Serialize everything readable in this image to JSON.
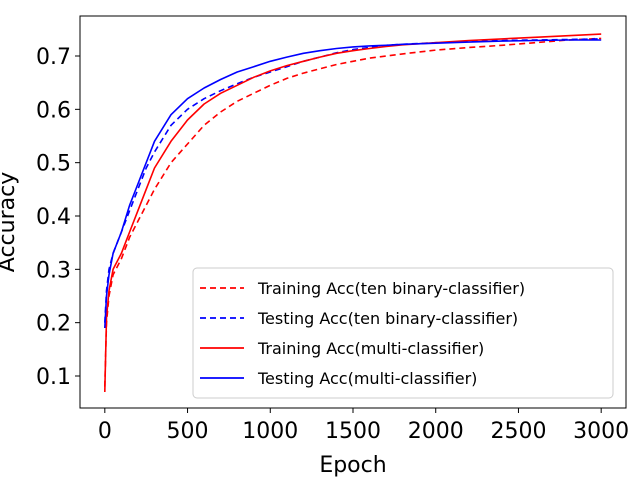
{
  "chart_data": {
    "type": "line",
    "xlabel": "Epoch",
    "ylabel": "Accuracy",
    "xlim": [
      -150,
      3150
    ],
    "ylim": [
      0.04,
      0.775
    ],
    "xticks": [
      0,
      500,
      1000,
      1500,
      2000,
      2500,
      3000
    ],
    "yticks": [
      0.1,
      0.2,
      0.3,
      0.4,
      0.5,
      0.6,
      0.7
    ],
    "xtick_labels": [
      "0",
      "500",
      "1000",
      "1500",
      "2000",
      "2500",
      "3000"
    ],
    "ytick_labels": [
      "0.1",
      "0.2",
      "0.3",
      "0.4",
      "0.5",
      "0.6",
      "0.7"
    ],
    "grid": false,
    "legend_position": "lower-right",
    "series": [
      {
        "name": "Training Acc(ten binary-classifier)",
        "color": "#ff0000",
        "style": "dashed",
        "x": [
          0,
          10,
          25,
          50,
          100,
          150,
          200,
          250,
          300,
          400,
          500,
          600,
          700,
          800,
          900,
          1000,
          1100,
          1200,
          1300,
          1400,
          1500,
          1600,
          1700,
          1800,
          2000,
          2200,
          2400,
          2600,
          2800,
          3000
        ],
        "y": [
          0.08,
          0.2,
          0.25,
          0.29,
          0.32,
          0.36,
          0.39,
          0.42,
          0.45,
          0.5,
          0.535,
          0.57,
          0.595,
          0.615,
          0.63,
          0.645,
          0.658,
          0.668,
          0.676,
          0.684,
          0.69,
          0.696,
          0.7,
          0.704,
          0.711,
          0.716,
          0.72,
          0.725,
          0.73,
          0.733
        ]
      },
      {
        "name": "Testing Acc(ten binary-classifier)",
        "color": "#0000ff",
        "style": "dashed",
        "x": [
          0,
          10,
          25,
          50,
          100,
          150,
          200,
          250,
          300,
          400,
          500,
          600,
          700,
          800,
          900,
          1000,
          1100,
          1200,
          1300,
          1400,
          1500,
          1600,
          1700,
          1800,
          2000,
          2200,
          2400,
          2600,
          2800,
          3000
        ],
        "y": [
          0.2,
          0.26,
          0.3,
          0.33,
          0.37,
          0.41,
          0.45,
          0.49,
          0.52,
          0.57,
          0.6,
          0.62,
          0.635,
          0.648,
          0.66,
          0.67,
          0.68,
          0.69,
          0.698,
          0.706,
          0.712,
          0.716,
          0.72,
          0.722,
          0.725,
          0.727,
          0.729,
          0.73,
          0.731,
          0.732
        ]
      },
      {
        "name": "Training Acc(multi-classifier)",
        "color": "#ff0000",
        "style": "solid",
        "x": [
          0,
          10,
          25,
          50,
          100,
          150,
          200,
          250,
          300,
          400,
          500,
          600,
          700,
          800,
          900,
          1000,
          1100,
          1200,
          1300,
          1400,
          1500,
          1600,
          1700,
          1800,
          2000,
          2200,
          2400,
          2600,
          2800,
          3000
        ],
        "y": [
          0.07,
          0.21,
          0.26,
          0.3,
          0.33,
          0.37,
          0.41,
          0.45,
          0.49,
          0.54,
          0.58,
          0.61,
          0.63,
          0.645,
          0.66,
          0.672,
          0.682,
          0.69,
          0.698,
          0.705,
          0.71,
          0.714,
          0.718,
          0.721,
          0.725,
          0.729,
          0.732,
          0.735,
          0.738,
          0.741
        ]
      },
      {
        "name": "Testing Acc(multi-classifier)",
        "color": "#0000ff",
        "style": "solid",
        "x": [
          0,
          10,
          25,
          50,
          100,
          150,
          200,
          250,
          300,
          400,
          500,
          600,
          700,
          800,
          900,
          1000,
          1100,
          1200,
          1300,
          1400,
          1500,
          1600,
          1700,
          1800,
          2000,
          2200,
          2400,
          2600,
          2800,
          3000
        ],
        "y": [
          0.19,
          0.25,
          0.29,
          0.33,
          0.37,
          0.42,
          0.46,
          0.5,
          0.54,
          0.59,
          0.62,
          0.64,
          0.656,
          0.67,
          0.68,
          0.69,
          0.698,
          0.705,
          0.71,
          0.714,
          0.717,
          0.719,
          0.72,
          0.722,
          0.724,
          0.726,
          0.728,
          0.729,
          0.73,
          0.73
        ]
      }
    ]
  }
}
